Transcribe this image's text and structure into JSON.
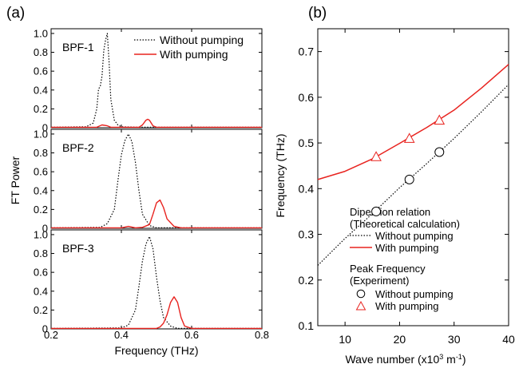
{
  "figure": {
    "panel_a_label": "(a)",
    "panel_b_label": "(b)"
  },
  "chart_data": [
    {
      "type": "line",
      "panel": "(a)",
      "ylabel": "FT Power",
      "xlabel": "Frequency (THz)",
      "xlim": [
        0.2,
        0.8
      ],
      "xticks": [
        "0.2",
        "0.4",
        "0.6",
        "0.8"
      ],
      "legend": {
        "placement": "top-right",
        "entries": [
          {
            "label": "Without pumping",
            "color": "#000000",
            "dash": "dotted"
          },
          {
            "label": "With pumping",
            "color": "#e8231f",
            "dash": "solid"
          }
        ]
      },
      "subplots": [
        {
          "name": "BPF-1",
          "ylim": [
            0,
            1.05
          ],
          "yticks": [
            "0",
            "0.2",
            "0.4",
            "0.6",
            "0.8",
            "1.0"
          ],
          "series": [
            {
              "name": "Without pumping",
              "x": [
                0.2,
                0.3,
                0.32,
                0.33,
                0.335,
                0.34,
                0.345,
                0.35,
                0.355,
                0.36,
                0.365,
                0.37,
                0.38,
                0.39,
                0.4,
                0.45,
                0.8
              ],
              "y": [
                0.005,
                0.01,
                0.05,
                0.2,
                0.41,
                0.44,
                0.55,
                0.82,
                0.93,
                1.0,
                0.7,
                0.3,
                0.08,
                0.03,
                0.01,
                0.005,
                0.005
              ]
            },
            {
              "name": "With pumping",
              "x": [
                0.2,
                0.33,
                0.345,
                0.36,
                0.37,
                0.45,
                0.46,
                0.47,
                0.475,
                0.48,
                0.49,
                0.5,
                0.6,
                0.8
              ],
              "y": [
                0.005,
                0.005,
                0.03,
                0.02,
                0.005,
                0.005,
                0.03,
                0.08,
                0.09,
                0.08,
                0.02,
                0.005,
                0.005,
                0.005
              ]
            }
          ]
        },
        {
          "name": "BPF-2",
          "ylim": [
            0,
            1.05
          ],
          "yticks": [
            "0",
            "0.2",
            "0.4",
            "0.6",
            "0.8",
            "1.0"
          ],
          "series": [
            {
              "name": "Without pumping",
              "x": [
                0.2,
                0.34,
                0.36,
                0.38,
                0.39,
                0.4,
                0.41,
                0.42,
                0.43,
                0.44,
                0.45,
                0.46,
                0.48,
                0.5,
                0.8
              ],
              "y": [
                0.005,
                0.01,
                0.05,
                0.2,
                0.5,
                0.78,
                0.93,
                1.0,
                0.92,
                0.7,
                0.4,
                0.15,
                0.03,
                0.005,
                0.005
              ]
            },
            {
              "name": "With pumping",
              "x": [
                0.2,
                0.4,
                0.42,
                0.44,
                0.46,
                0.48,
                0.49,
                0.5,
                0.51,
                0.52,
                0.53,
                0.55,
                0.57,
                0.8
              ],
              "y": [
                0.005,
                0.005,
                0.02,
                0.005,
                0.01,
                0.04,
                0.15,
                0.27,
                0.3,
                0.22,
                0.1,
                0.02,
                0.005,
                0.005
              ]
            }
          ]
        },
        {
          "name": "BPF-3",
          "ylim": [
            0,
            1.05
          ],
          "yticks": [
            "0",
            "0.2",
            "0.4",
            "0.6",
            "0.8",
            "1.0"
          ],
          "series": [
            {
              "name": "Without pumping",
              "x": [
                0.2,
                0.4,
                0.42,
                0.44,
                0.45,
                0.46,
                0.47,
                0.48,
                0.49,
                0.5,
                0.51,
                0.52,
                0.54,
                0.56,
                0.8
              ],
              "y": [
                0.005,
                0.01,
                0.04,
                0.2,
                0.45,
                0.72,
                0.9,
                0.98,
                0.85,
                0.55,
                0.3,
                0.12,
                0.03,
                0.005,
                0.005
              ]
            },
            {
              "name": "With pumping",
              "x": [
                0.2,
                0.5,
                0.51,
                0.52,
                0.53,
                0.54,
                0.55,
                0.56,
                0.57,
                0.58,
                0.6,
                0.8
              ],
              "y": [
                0.005,
                0.005,
                0.02,
                0.06,
                0.15,
                0.28,
                0.34,
                0.28,
                0.12,
                0.03,
                0.005,
                0.005
              ]
            }
          ]
        }
      ]
    },
    {
      "type": "line",
      "panel": "(b)",
      "xlabel": "Wave number (x10^3 m^-1)",
      "xlabel_parts": [
        "Wave number (x10",
        "3",
        " m",
        "-1",
        ")"
      ],
      "ylabel": "Frequency (THz)",
      "xlim": [
        5,
        40
      ],
      "ylim": [
        0.1,
        0.75
      ],
      "xticks": [
        "10",
        "20",
        "30",
        "40"
      ],
      "yticks": [
        "0.1",
        "0.2",
        "0.3",
        "0.4",
        "0.5",
        "0.6",
        "0.7"
      ],
      "legend": {
        "placement": "bottom-right",
        "heading1": "Dipersion relation",
        "heading1b": "(Theoretical calculation)",
        "heading2": "Peak Frequency",
        "heading2b": "(Experiment)",
        "line_entries": [
          {
            "label": "Without pumping",
            "color": "#000000",
            "dash": "dotted"
          },
          {
            "label": "With pumping",
            "color": "#e8231f",
            "dash": "solid"
          }
        ],
        "marker_entries": [
          {
            "label": "Without pumping",
            "marker": "circle",
            "color": "#000000"
          },
          {
            "label": "With pumping",
            "marker": "triangle",
            "color": "#e8231f"
          }
        ]
      },
      "series": [
        {
          "name": "Without pumping",
          "kind": "theory",
          "x": [
            5,
            10,
            15,
            20,
            25,
            30,
            35,
            40
          ],
          "y": [
            0.232,
            0.291,
            0.345,
            0.402,
            0.455,
            0.51,
            0.568,
            0.628
          ]
        },
        {
          "name": "With pumping",
          "kind": "theory",
          "x": [
            5,
            10,
            15,
            20,
            25,
            30,
            35,
            40
          ],
          "y": [
            0.42,
            0.438,
            0.465,
            0.499,
            0.534,
            0.572,
            0.62,
            0.672
          ]
        },
        {
          "name": "Without pumping",
          "kind": "experiment",
          "marker": "circle",
          "x": [
            15.7,
            21.8,
            27.3
          ],
          "y": [
            0.35,
            0.42,
            0.48
          ]
        },
        {
          "name": "With pumping",
          "kind": "experiment",
          "marker": "triangle",
          "x": [
            15.7,
            21.8,
            27.3
          ],
          "y": [
            0.47,
            0.51,
            0.55
          ]
        }
      ]
    }
  ]
}
